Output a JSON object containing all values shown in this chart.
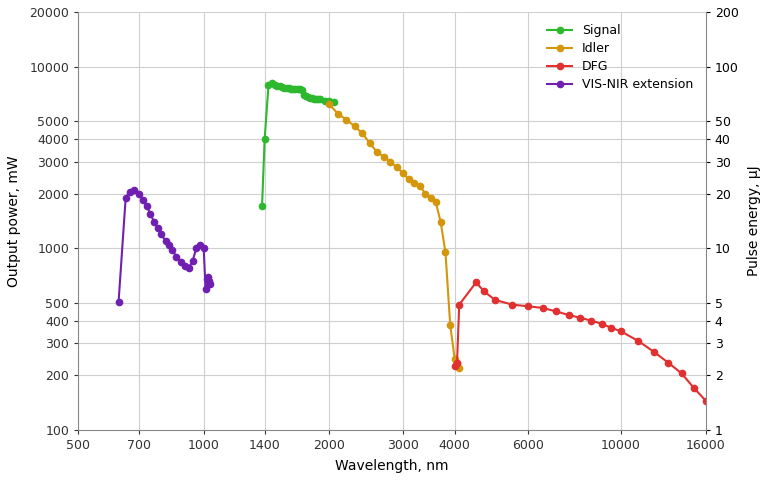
{
  "signal_x": [
    1380,
    1400,
    1430,
    1460,
    1480,
    1500,
    1520,
    1540,
    1560,
    1580,
    1600,
    1620,
    1640,
    1660,
    1680,
    1700,
    1720,
    1740,
    1760,
    1780,
    1800,
    1820,
    1840,
    1860,
    1880,
    1900,
    1950,
    2000,
    2050
  ],
  "signal_y": [
    1700,
    4000,
    7900,
    8100,
    7900,
    7800,
    7800,
    7700,
    7600,
    7600,
    7600,
    7500,
    7500,
    7500,
    7500,
    7500,
    7400,
    7000,
    6900,
    6800,
    6700,
    6700,
    6600,
    6600,
    6600,
    6600,
    6500,
    6500,
    6400
  ],
  "idler_x": [
    2000,
    2100,
    2200,
    2300,
    2400,
    2500,
    2600,
    2700,
    2800,
    2900,
    3000,
    3100,
    3200,
    3300,
    3400,
    3500,
    3600,
    3700,
    3800,
    3900,
    4000,
    4050,
    4100
  ],
  "idler_y": [
    6200,
    5500,
    5100,
    4700,
    4300,
    3800,
    3400,
    3200,
    3000,
    2800,
    2600,
    2400,
    2300,
    2200,
    2000,
    1900,
    1800,
    1400,
    950,
    380,
    245,
    235,
    220
  ],
  "dfg_x": [
    4000,
    4050,
    4100,
    4500,
    4700,
    5000,
    5500,
    6000,
    6500,
    7000,
    7500,
    8000,
    8500,
    9000,
    9500,
    10000,
    11000,
    12000,
    13000,
    14000,
    15000,
    16000
  ],
  "dfg_y": [
    225,
    235,
    490,
    650,
    580,
    520,
    490,
    480,
    470,
    450,
    430,
    415,
    400,
    385,
    365,
    350,
    310,
    270,
    235,
    205,
    170,
    145
  ],
  "vis_x": [
    625,
    650,
    665,
    680,
    700,
    715,
    730,
    745,
    760,
    775,
    790,
    810,
    825,
    840,
    860,
    880,
    900,
    920,
    940,
    960,
    980,
    1000,
    1010,
    1020,
    1025,
    1030,
    1035
  ],
  "vis_y": [
    510,
    1900,
    2050,
    2100,
    2000,
    1850,
    1700,
    1550,
    1400,
    1300,
    1200,
    1100,
    1050,
    980,
    900,
    840,
    800,
    780,
    850,
    1000,
    1050,
    1000,
    600,
    680,
    700,
    660,
    640
  ],
  "signal_color": "#2db82d",
  "idler_color": "#d4960a",
  "dfg_color": "#e03030",
  "vis_color": "#7020b0",
  "bg_color": "#ffffff",
  "plot_bg_color": "#ffffff",
  "grid_color": "#d0d0d0",
  "ylabel_left": "Output power, mW",
  "ylabel_right": "Pulse energy, μJ",
  "xlabel": "Wavelength, nm",
  "ylim_left": [
    100,
    20000
  ],
  "ylim_right": [
    1,
    200
  ],
  "xlim": [
    500,
    16000
  ],
  "xtick_positions": [
    500,
    700,
    1000,
    1400,
    2000,
    3000,
    4000,
    6000,
    10000,
    16000
  ],
  "xtick_labels": [
    "500",
    "700",
    "1000",
    "1400",
    "2000",
    "3000",
    "4000",
    "6000",
    "10000",
    "16000"
  ],
  "yticks_left": [
    100,
    200,
    300,
    400,
    500,
    1000,
    2000,
    3000,
    4000,
    5000,
    10000,
    20000
  ],
  "ytick_labels_left": [
    "100",
    "200",
    "300",
    "400",
    "500",
    "1000",
    "2000",
    "3000",
    "4000",
    "5000",
    "10000",
    "20000"
  ],
  "yticks_right": [
    1,
    2,
    3,
    4,
    5,
    10,
    20,
    30,
    40,
    50,
    100,
    200
  ],
  "ytick_labels_right": [
    "1",
    "2",
    "3",
    "4",
    "5",
    "10",
    "20",
    "30",
    "40",
    "50",
    "100",
    "200"
  ]
}
